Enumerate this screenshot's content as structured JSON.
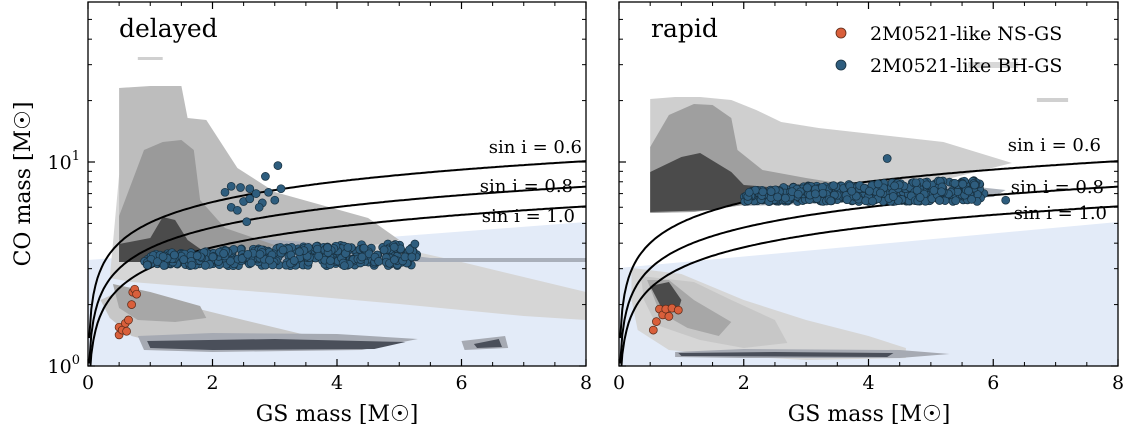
{
  "chart_data": [
    {
      "type": "scatter",
      "title": "delayed",
      "xlabel": "GS mass [M☉]",
      "ylabel": "CO mass [M☉]",
      "xlim": [
        0,
        8
      ],
      "ylim": [
        1,
        60
      ],
      "yscale": "log",
      "x_ticks": [
        "0",
        "2",
        "4",
        "6",
        "8"
      ],
      "y_ticks": [
        {
          "value": 1,
          "label": "10",
          "sup": "0"
        },
        {
          "value": 10,
          "label": "10",
          "sup": "1"
        }
      ],
      "grid": false,
      "curves": [
        {
          "label": "sin i = 0.6",
          "sin_i": 0.6
        },
        {
          "label": "sin i = 0.8",
          "sin_i": 0.8
        },
        {
          "label": "sin i = 1.0",
          "sin_i": 1.0
        }
      ],
      "series": [
        {
          "name": "2M0521-like NS-GS",
          "color": "#d95f3b",
          "points": [
            [
              0.5,
              1.42
            ],
            [
              0.5,
              1.55
            ],
            [
              0.55,
              1.5
            ],
            [
              0.6,
              1.62
            ],
            [
              0.62,
              1.48
            ],
            [
              0.65,
              1.68
            ],
            [
              0.7,
              2.0
            ],
            [
              0.72,
              2.3
            ],
            [
              0.75,
              2.38
            ],
            [
              0.78,
              2.25
            ]
          ]
        },
        {
          "name": "2M0521-like BH-GS",
          "color": "#2e5d7e",
          "cluster": {
            "x_range": [
              0.9,
              5.3
            ],
            "y_low": 3.1,
            "y_high": 4.0,
            "count": 420
          },
          "points": [
            [
              2.3,
              6.0
            ],
            [
              2.4,
              5.8
            ],
            [
              2.5,
              6.4
            ],
            [
              2.6,
              6.6
            ],
            [
              2.7,
              7.0
            ],
            [
              2.8,
              6.3
            ],
            [
              3.0,
              6.5
            ],
            [
              3.05,
              9.6
            ],
            [
              2.85,
              8.5
            ],
            [
              2.9,
              7.1
            ],
            [
              3.1,
              7.4
            ],
            [
              2.2,
              7.1
            ],
            [
              2.3,
              7.6
            ],
            [
              2.45,
              7.5
            ],
            [
              2.6,
              7.4
            ],
            [
              2.55,
              5.1
            ],
            [
              2.75,
              6.0
            ]
          ]
        }
      ]
    },
    {
      "type": "scatter",
      "title": "rapid",
      "xlabel": "GS mass [M☉]",
      "ylabel": "",
      "xlim": [
        0,
        8
      ],
      "ylim": [
        1,
        60
      ],
      "yscale": "log",
      "x_ticks": [
        "0",
        "2",
        "4",
        "6",
        "8"
      ],
      "grid": false,
      "legend": {
        "position": "top-right",
        "entries": [
          "2M0521-like NS-GS",
          "2M0521-like BH-GS"
        ]
      },
      "curves": [
        {
          "label": "sin i = 0.6",
          "sin_i": 0.6
        },
        {
          "label": "sin i = 0.8",
          "sin_i": 0.8
        },
        {
          "label": "sin i = 1.0",
          "sin_i": 1.0
        }
      ],
      "series": [
        {
          "name": "2M0521-like NS-GS",
          "color": "#d95f3b",
          "points": [
            [
              0.55,
              1.5
            ],
            [
              0.6,
              1.65
            ],
            [
              0.65,
              1.9
            ],
            [
              0.7,
              1.78
            ],
            [
              0.75,
              1.9
            ],
            [
              0.8,
              1.75
            ],
            [
              0.85,
              1.92
            ],
            [
              0.95,
              1.88
            ]
          ]
        },
        {
          "name": "2M0521-like BH-GS",
          "color": "#2e5d7e",
          "cluster": {
            "x_range": [
              2.0,
              5.8
            ],
            "y_low": 6.4,
            "y_high": 8.2,
            "count": 520
          },
          "points": [
            [
              4.3,
              10.4
            ],
            [
              6.2,
              6.5
            ],
            [
              5.85,
              7.0
            ],
            [
              5.6,
              7.5
            ],
            [
              5.5,
              8.0
            ]
          ]
        }
      ]
    }
  ]
}
